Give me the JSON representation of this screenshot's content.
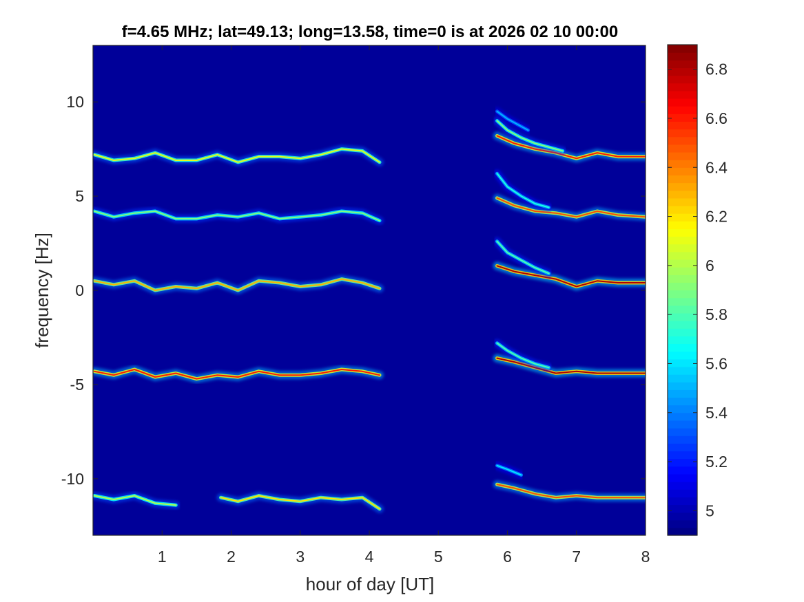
{
  "chart_data": {
    "type": "heatmap",
    "title": "f=4.65 MHz;  lat=49.13; long=13.58, time=0 is at 2026 02 10 00:00",
    "xlabel": "hour of day [UT]",
    "ylabel": "frequency [Hz]",
    "xlim": [
      0,
      8
    ],
    "ylim": [
      -13,
      13
    ],
    "x_ticks": [
      1,
      2,
      3,
      4,
      5,
      6,
      7,
      8
    ],
    "x_tick_labels": [
      "1",
      "2",
      "3",
      "4",
      "5",
      "6",
      "7",
      "8"
    ],
    "y_ticks": [
      10,
      5,
      0,
      -5,
      -10
    ],
    "y_tick_labels": [
      "10",
      "5",
      "0",
      "-5",
      "-10"
    ],
    "colorbar": {
      "range": [
        4.9,
        6.9
      ],
      "ticks": [
        6.8,
        6.6,
        6.4,
        6.2,
        6,
        5.8,
        5.6,
        5.4,
        5.2,
        5
      ],
      "tick_labels": [
        "6.8",
        "6.6",
        "6.4",
        "6.2",
        "6",
        "5.8",
        "5.6",
        "5.4",
        "5.2",
        "5"
      ],
      "colormap": "jet"
    },
    "background_value": 4.95,
    "gap_hours": [
      4.15,
      5.85
    ],
    "traces": [
      {
        "name": "",
        "segments": [
          {
            "x": [
              0.02,
              0.3,
              0.6,
              0.9,
              1.2,
              1.5,
              1.8,
              2.1,
              2.4,
              2.7,
              3.0,
              3.3,
              3.6,
              3.9,
              4.15
            ],
            "y": [
              7.2,
              6.9,
              7.0,
              7.3,
              6.9,
              6.9,
              7.2,
              6.8,
              7.1,
              7.1,
              7.0,
              7.2,
              7.5,
              7.4,
              6.8
            ],
            "intensity": 6.1
          },
          {
            "x": [
              5.85,
              6.1,
              6.4,
              6.7,
              7.0,
              7.3,
              7.6,
              8.0
            ],
            "y": [
              8.2,
              7.8,
              7.5,
              7.3,
              7.0,
              7.3,
              7.1,
              7.1
            ],
            "intensity": 6.6
          },
          {
            "x": [
              5.85,
              6.0,
              6.2,
              6.4,
              6.6,
              6.8
            ],
            "y": [
              9.0,
              8.5,
              8.1,
              7.8,
              7.6,
              7.4
            ],
            "intensity": 5.9
          },
          {
            "x": [
              5.85,
              6.0,
              6.15,
              6.3
            ],
            "y": [
              9.5,
              9.1,
              8.8,
              8.5
            ],
            "intensity": 5.5
          }
        ]
      },
      {
        "name": "",
        "segments": [
          {
            "x": [
              0.02,
              0.3,
              0.6,
              0.9,
              1.2,
              1.5,
              1.8,
              2.1,
              2.4,
              2.7,
              3.0,
              3.3,
              3.6,
              3.9,
              4.15
            ],
            "y": [
              4.2,
              3.9,
              4.1,
              4.2,
              3.8,
              3.8,
              4.0,
              3.9,
              4.1,
              3.8,
              3.9,
              4.0,
              4.2,
              4.1,
              3.7
            ],
            "intensity": 5.9
          },
          {
            "x": [
              5.85,
              6.1,
              6.4,
              6.7,
              7.0,
              7.3,
              7.6,
              8.0
            ],
            "y": [
              4.9,
              4.5,
              4.2,
              4.1,
              3.9,
              4.2,
              4.0,
              3.9
            ],
            "intensity": 6.5
          },
          {
            "x": [
              5.85,
              6.0,
              6.2,
              6.4,
              6.6
            ],
            "y": [
              6.2,
              5.5,
              5.0,
              4.6,
              4.4
            ],
            "intensity": 5.7
          }
        ]
      },
      {
        "name": "",
        "segments": [
          {
            "x": [
              0.02,
              0.3,
              0.6,
              0.9,
              1.2,
              1.5,
              1.8,
              2.1,
              2.4,
              2.7,
              3.0,
              3.3,
              3.6,
              3.9,
              4.15
            ],
            "y": [
              0.5,
              0.3,
              0.5,
              0.0,
              0.2,
              0.1,
              0.4,
              0.0,
              0.5,
              0.4,
              0.2,
              0.3,
              0.6,
              0.4,
              0.1
            ],
            "intensity": 6.3
          },
          {
            "x": [
              5.85,
              6.1,
              6.4,
              6.7,
              7.0,
              7.3,
              7.6,
              8.0
            ],
            "y": [
              1.3,
              1.0,
              0.8,
              0.6,
              0.2,
              0.5,
              0.4,
              0.4
            ],
            "intensity": 6.8
          },
          {
            "x": [
              5.85,
              6.0,
              6.2,
              6.4,
              6.6
            ],
            "y": [
              2.6,
              2.0,
              1.6,
              1.2,
              0.9
            ],
            "intensity": 5.8
          }
        ]
      },
      {
        "name": "",
        "segments": [
          {
            "x": [
              0.02,
              0.3,
              0.6,
              0.9,
              1.2,
              1.5,
              1.8,
              2.1,
              2.4,
              2.7,
              3.0,
              3.3,
              3.6,
              3.9,
              4.15
            ],
            "y": [
              -4.3,
              -4.5,
              -4.2,
              -4.6,
              -4.4,
              -4.7,
              -4.5,
              -4.6,
              -4.3,
              -4.5,
              -4.5,
              -4.4,
              -4.2,
              -4.3,
              -4.5
            ],
            "intensity": 6.6
          },
          {
            "x": [
              5.85,
              6.1,
              6.4,
              6.7,
              7.0,
              7.3,
              7.6,
              8.0
            ],
            "y": [
              -3.6,
              -3.8,
              -4.1,
              -4.4,
              -4.3,
              -4.4,
              -4.4,
              -4.4
            ],
            "intensity": 6.8
          },
          {
            "x": [
              5.85,
              6.0,
              6.2,
              6.4,
              6.6
            ],
            "y": [
              -2.8,
              -3.2,
              -3.6,
              -3.9,
              -4.1
            ],
            "intensity": 5.8
          }
        ]
      },
      {
        "name": "",
        "segments": [
          {
            "x": [
              0.02,
              0.3,
              0.6,
              0.9,
              1.2
            ],
            "y": [
              -10.9,
              -11.1,
              -10.9,
              -11.3,
              -11.4
            ],
            "intensity": 6.0
          },
          {
            "x": [
              1.85,
              2.1,
              2.4,
              2.7,
              3.0,
              3.3,
              3.6,
              3.9,
              4.15
            ],
            "y": [
              -11.0,
              -11.2,
              -10.9,
              -11.1,
              -11.2,
              -11.0,
              -11.1,
              -11.0,
              -11.6
            ],
            "intensity": 6.2
          },
          {
            "x": [
              5.85,
              6.1,
              6.4,
              6.7,
              7.0,
              7.3,
              7.6,
              8.0
            ],
            "y": [
              -10.3,
              -10.5,
              -10.8,
              -11.0,
              -10.9,
              -11.0,
              -11.0,
              -11.0
            ],
            "intensity": 6.5
          },
          {
            "x": [
              5.85,
              6.0,
              6.2
            ],
            "y": [
              -9.3,
              -9.5,
              -9.8
            ],
            "intensity": 5.6
          }
        ]
      }
    ]
  }
}
